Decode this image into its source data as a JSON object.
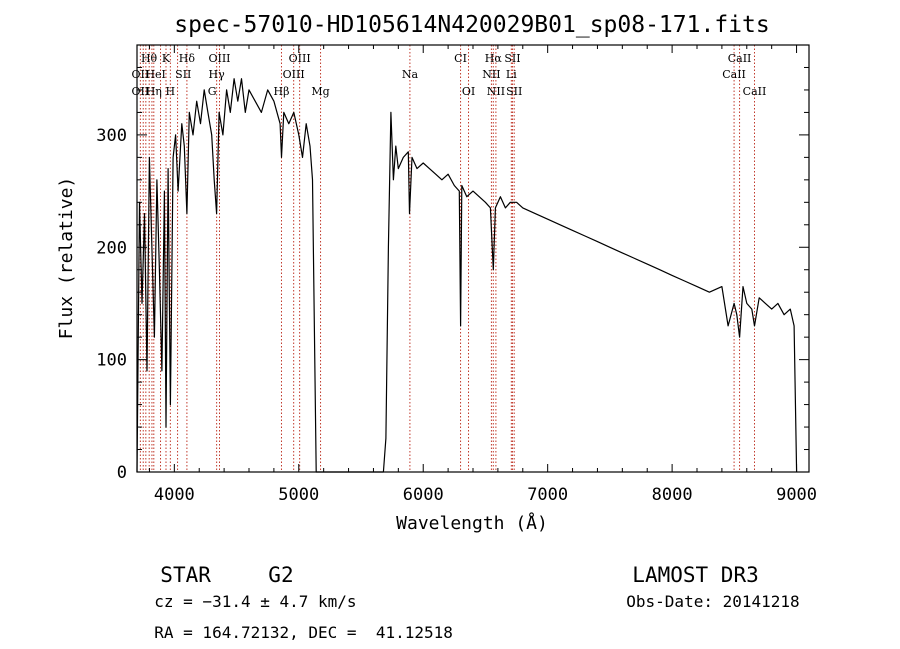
{
  "chart_data": {
    "type": "line",
    "title": "spec-57010-HD105614N420029B01_sp08-171.fits",
    "xlabel": "Wavelength (Å)",
    "ylabel": "Flux (relative)",
    "xlim": [
      3700,
      9100
    ],
    "ylim": [
      0,
      380
    ],
    "x_ticks": [
      4000,
      5000,
      6000,
      7000,
      8000,
      9000
    ],
    "x_tick_labels": [
      "4000",
      "5000",
      "6000",
      "7000",
      "8000",
      "9000"
    ],
    "y_ticks": [
      0,
      100,
      200,
      300
    ],
    "y_tick_labels": [
      "0",
      "100",
      "200",
      "300"
    ],
    "grid": false,
    "series": [
      {
        "x": [
          3700,
          3720,
          3740,
          3760,
          3780,
          3800,
          3820,
          3840,
          3860,
          3880,
          3900,
          3920,
          3933,
          3950,
          3968,
          3990,
          4010,
          4030,
          4060,
          4080,
          4101,
          4120,
          4150,
          4180,
          4210,
          4240,
          4270,
          4300,
          4320,
          4340,
          4360,
          4390,
          4420,
          4450,
          4480,
          4510,
          4540,
          4570,
          4600,
          4650,
          4700,
          4750,
          4800,
          4850,
          4861,
          4880,
          4920,
          4960,
          5000,
          5030,
          5060,
          5090,
          5110,
          5140,
          5150,
          5200,
          5300,
          5400,
          5500,
          5600,
          5680,
          5700,
          5720,
          5740,
          5760,
          5780,
          5800,
          5840,
          5880,
          5890,
          5910,
          5950,
          6000,
          6050,
          6100,
          6150,
          6200,
          6250,
          6290,
          6300,
          6310,
          6350,
          6400,
          6450,
          6500,
          6540,
          6563,
          6580,
          6620,
          6660,
          6700,
          6750,
          6800,
          6900,
          7000,
          7100,
          7200,
          7300,
          7400,
          7500,
          7600,
          7700,
          7800,
          7900,
          8000,
          8100,
          8200,
          8300,
          8400,
          8450,
          8498,
          8520,
          8542,
          8570,
          8600,
          8640,
          8662,
          8700,
          8750,
          8800,
          8850,
          8900,
          8950,
          8980,
          9000
        ],
        "y": [
          0,
          240,
          150,
          230,
          90,
          280,
          200,
          120,
          260,
          180,
          90,
          250,
          40,
          270,
          60,
          280,
          300,
          250,
          310,
          290,
          230,
          320,
          300,
          330,
          310,
          340,
          320,
          300,
          260,
          230,
          320,
          300,
          340,
          320,
          350,
          330,
          350,
          320,
          340,
          330,
          320,
          340,
          330,
          310,
          280,
          320,
          310,
          320,
          300,
          280,
          310,
          290,
          260,
          0,
          0,
          0,
          0,
          0,
          0,
          0,
          0,
          30,
          200,
          320,
          260,
          290,
          270,
          280,
          285,
          230,
          280,
          270,
          275,
          270,
          265,
          260,
          265,
          255,
          250,
          130,
          255,
          245,
          250,
          245,
          240,
          235,
          180,
          235,
          245,
          235,
          240,
          240,
          235,
          230,
          225,
          220,
          215,
          210,
          205,
          200,
          195,
          190,
          185,
          180,
          175,
          170,
          165,
          160,
          165,
          130,
          150,
          140,
          120,
          165,
          150,
          145,
          130,
          155,
          150,
          145,
          150,
          140,
          145,
          130,
          0
        ]
      }
    ],
    "line_marks": {
      "wavelengths": [
        3727,
        3750,
        3771,
        3798,
        3820,
        3835,
        3889,
        3933,
        3968,
        4026,
        4101,
        4340,
        4363,
        4861,
        4959,
        5007,
        5175,
        5893,
        6300,
        6364,
        6548,
        6563,
        6584,
        6708,
        6717,
        6731,
        8498,
        8542,
        8662
      ],
      "labels": [
        {
          "text": "Hθ",
          "at": 3797,
          "row": 1
        },
        {
          "text": "K",
          "at": 3933,
          "row": 1
        },
        {
          "text": "Hδ",
          "at": 4101,
          "row": 1
        },
        {
          "text": "OIII",
          "at": 4363,
          "row": 1
        },
        {
          "text": "OIII",
          "at": 5007,
          "row": 1
        },
        {
          "text": "CI",
          "at": 6300,
          "row": 1
        },
        {
          "text": "Hα",
          "at": 6563,
          "row": 1
        },
        {
          "text": "SII",
          "at": 6717,
          "row": 1
        },
        {
          "text": "CaII",
          "at": 8542,
          "row": 1
        },
        {
          "text": "OII",
          "at": 3727,
          "row": 2
        },
        {
          "text": "HeI",
          "at": 3850,
          "row": 2
        },
        {
          "text": "SII",
          "at": 4072,
          "row": 2
        },
        {
          "text": "Hγ",
          "at": 4340,
          "row": 2
        },
        {
          "text": "OIII",
          "at": 4959,
          "row": 2
        },
        {
          "text": "Na",
          "at": 5893,
          "row": 2
        },
        {
          "text": "NII",
          "at": 6548,
          "row": 2
        },
        {
          "text": "Li",
          "at": 6708,
          "row": 2
        },
        {
          "text": "CaII",
          "at": 8498,
          "row": 2
        },
        {
          "text": "OII",
          "at": 3727,
          "row": 3
        },
        {
          "text": "Hη",
          "at": 3835,
          "row": 3
        },
        {
          "text": "H",
          "at": 3968,
          "row": 3
        },
        {
          "text": "G",
          "at": 4304,
          "row": 3
        },
        {
          "text": "Hβ",
          "at": 4861,
          "row": 3
        },
        {
          "text": "Mg",
          "at": 5175,
          "row": 3
        },
        {
          "text": "OI",
          "at": 6364,
          "row": 3
        },
        {
          "text": "NII",
          "at": 6584,
          "row": 3
        },
        {
          "text": "SII",
          "at": 6731,
          "row": 3
        },
        {
          "text": "CaII",
          "at": 8662,
          "row": 3
        }
      ]
    },
    "line_color": "#000000",
    "mark_color": "#c0392b"
  },
  "info": {
    "class": "STAR",
    "subclass": "G2",
    "cz": "cz = −31.4 ± 4.7 km/s",
    "coords": "RA = 164.72132, DEC =  41.12518",
    "survey": "LAMOST DR3",
    "obs_date": "Obs-Date: 20141218"
  }
}
